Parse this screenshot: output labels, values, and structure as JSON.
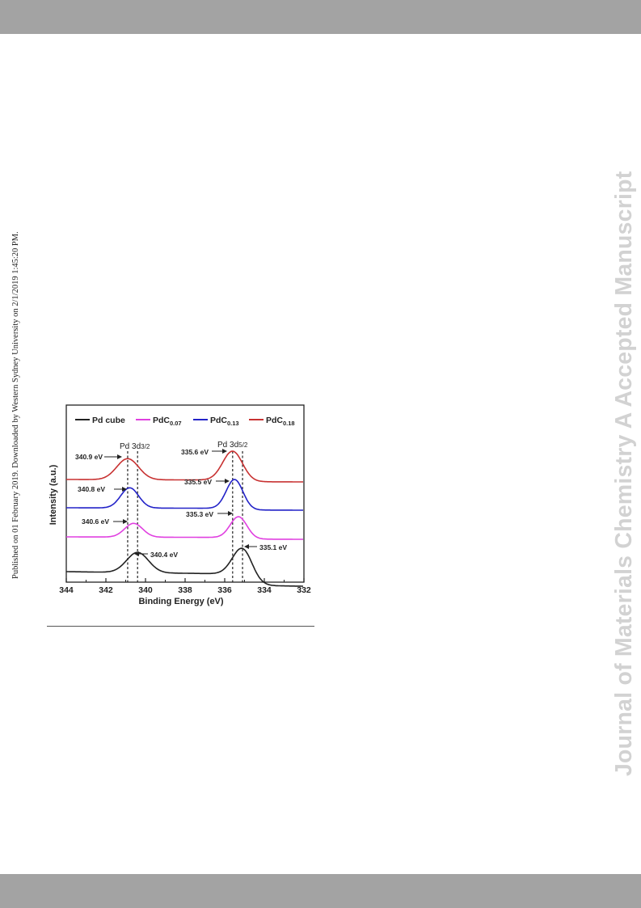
{
  "page": {
    "side_note": "Published on 01 February 2019. Downloaded by Western Sydney University on 2/1/2019 1:45:20 PM.",
    "journal_watermark": "Journal of Materials Chemistry A Accepted Manuscript"
  },
  "chart_data": {
    "type": "line",
    "xlabel": "Binding Energy (eV)",
    "ylabel": "Intensity (a.u.)",
    "xlim": [
      344,
      332
    ],
    "x_reversed": true,
    "x_ticks": [
      "344",
      "342",
      "340",
      "338",
      "336",
      "334",
      "332"
    ],
    "grid": false,
    "legend_position": "top",
    "peak_labels": [
      {
        "text": "Pd 3d",
        "sub": "3/2"
      },
      {
        "text": "Pd 3d",
        "sub": "5/2"
      }
    ],
    "reference_lines_eV": [
      340.9,
      340.4,
      335.6,
      335.1
    ],
    "series": [
      {
        "name": "Pd cube",
        "legend_main": "Pd cube",
        "legend_sub": "",
        "color": "#222222",
        "peaks": [
          340.4,
          335.1
        ],
        "peak_labels": [
          "340.4 eV",
          "335.1 eV"
        ]
      },
      {
        "name": "PdC0.07",
        "legend_main": "PdC",
        "legend_sub": "0.07",
        "color": "#e040e0",
        "peaks": [
          340.6,
          335.3
        ],
        "peak_labels": [
          "340.6 eV",
          "335.3 eV"
        ]
      },
      {
        "name": "PdC0.13",
        "legend_main": "PdC",
        "legend_sub": "0.13",
        "color": "#2323c8",
        "peaks": [
          340.8,
          335.5
        ],
        "peak_labels": [
          "340.8 eV",
          "335.5 eV"
        ]
      },
      {
        "name": "PdC0.18",
        "legend_main": "PdC",
        "legend_sub": "0.18",
        "color": "#c83232",
        "peaks": [
          340.9,
          335.6
        ],
        "peak_labels": [
          "340.9 eV",
          "335.6 eV"
        ]
      }
    ]
  }
}
